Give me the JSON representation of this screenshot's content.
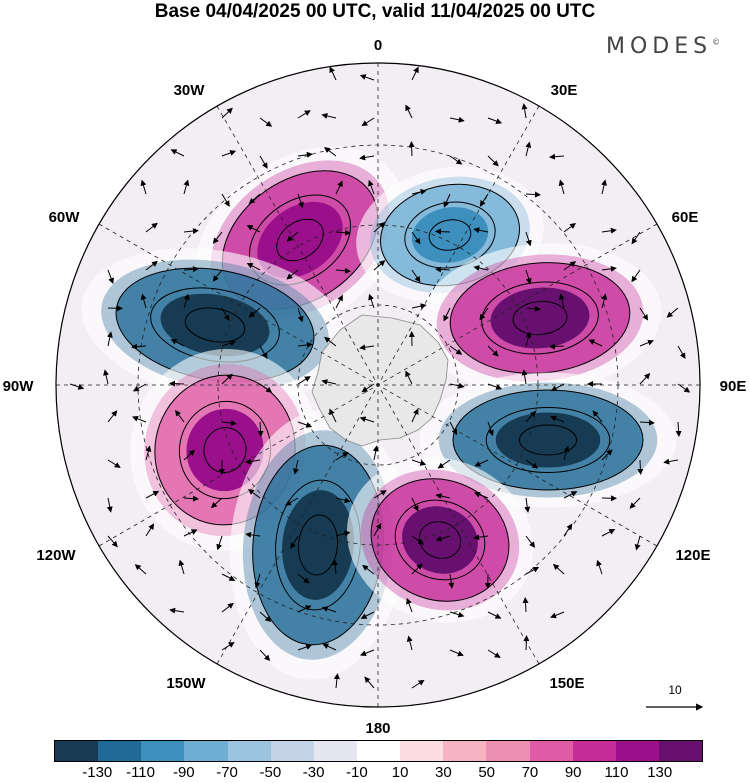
{
  "title": "Base 04/04/2025 00 UTC, valid 11/04/2025 00 UTC",
  "brand": {
    "name": "MODES",
    "mark": "©"
  },
  "labels": {
    "n0": "0",
    "n180": "180",
    "w30": "30W",
    "w60": "60W",
    "w90": "90W",
    "w120": "120W",
    "w150": "150W",
    "e30": "30E",
    "e60": "60E",
    "e90": "90E",
    "e120": "120E",
    "e150": "150E"
  },
  "vector_reference": "10",
  "colorbar": {
    "colors": [
      "#163b52",
      "#1f6a96",
      "#3d8fbe",
      "#6faed3",
      "#9cc3e0",
      "#c4d3e7",
      "#e6e6f2",
      "#ffffff",
      "#fbdde1",
      "#f5b4c1",
      "#ec8fb0",
      "#e05ca6",
      "#c62b97",
      "#9a0f8a",
      "#681070"
    ],
    "ticks": [
      "-130",
      "-110",
      "-90",
      "-70",
      "-50",
      "-30",
      "-10",
      "10",
      "30",
      "50",
      "70",
      "90",
      "110",
      "130"
    ]
  },
  "anomalies": [
    {
      "name": "nw-high",
      "color": "#c62b97",
      "core": "#9a0f8a"
    },
    {
      "name": "north-low",
      "color": "#6faed3",
      "core": "#3d8fbe"
    },
    {
      "name": "west-low",
      "color": "#1f6a96",
      "core": "#163b52"
    },
    {
      "name": "east-high",
      "color": "#c62b97",
      "core": "#681070"
    },
    {
      "name": "east-low",
      "color": "#1f6a96",
      "core": "#163b52"
    },
    {
      "name": "sw-high",
      "color": "#e05ca6",
      "core": "#9a0f8a"
    },
    {
      "name": "south-low",
      "color": "#1f6a96",
      "core": "#163b52"
    },
    {
      "name": "se-high",
      "color": "#c62b97",
      "core": "#681070"
    }
  ]
}
